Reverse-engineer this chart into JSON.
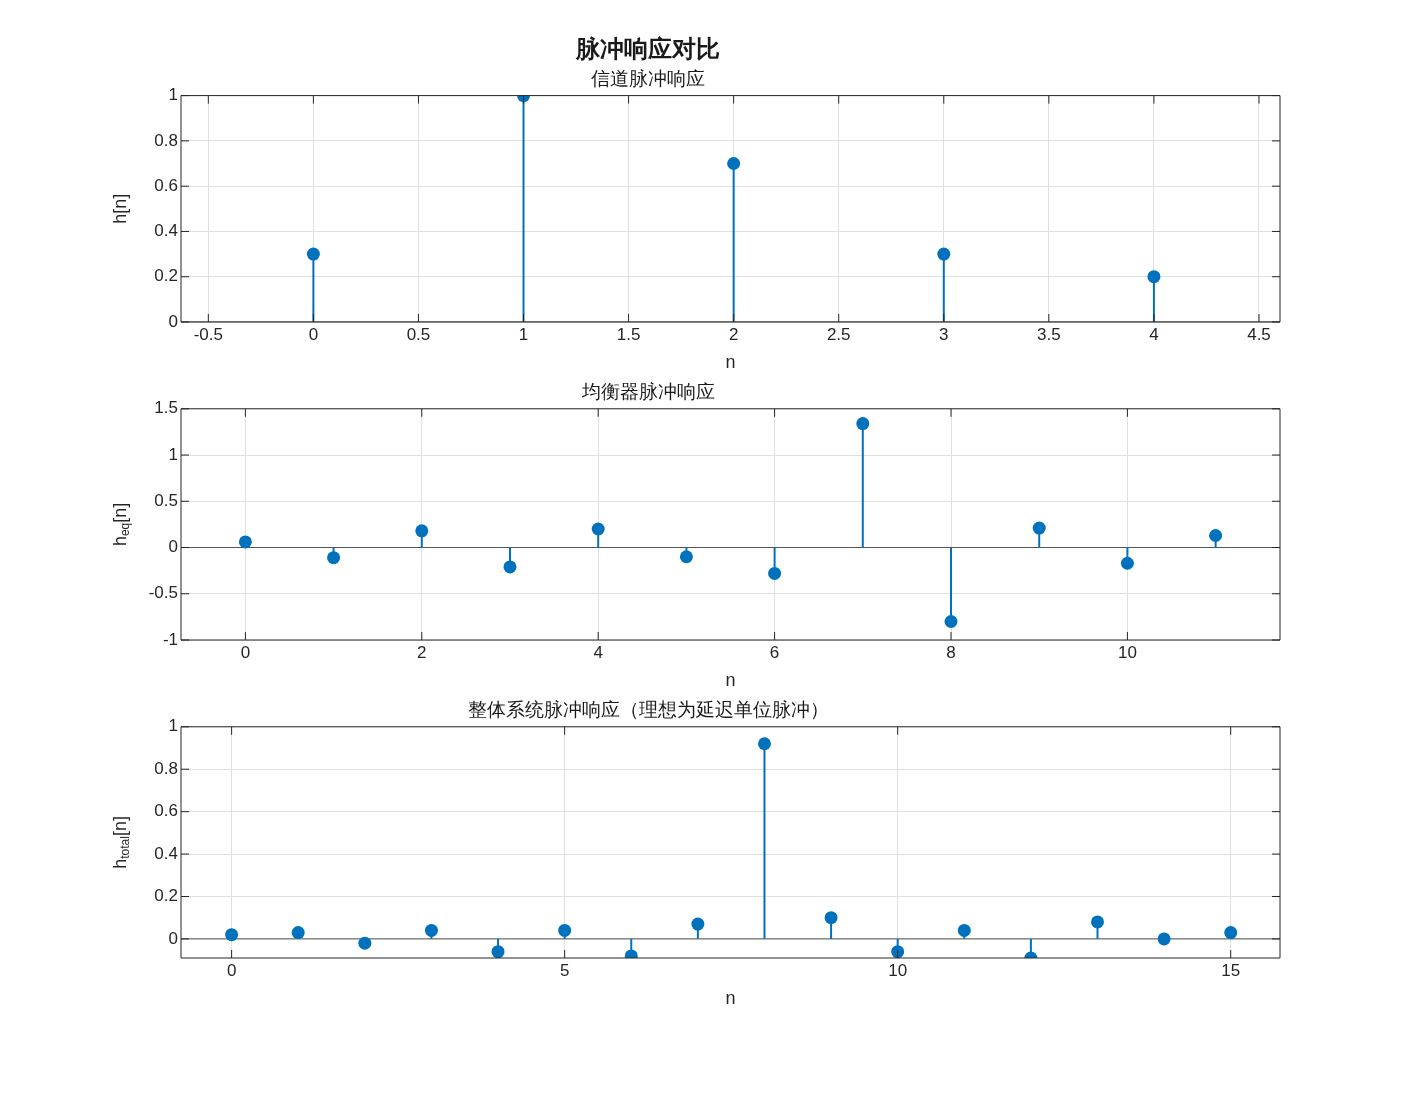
{
  "chart_data": [
    {
      "type": "lollipop",
      "title": "脉冲响应对比",
      "subtitle": "信道脉冲响应",
      "xlabel": "n",
      "ylabel": "h[n]",
      "x": [
        0,
        1,
        2,
        3,
        4
      ],
      "series": [
        {
          "color": "#0072bd",
          "values": [
            0.3,
            1,
            0.7,
            0.3,
            0.2
          ]
        }
      ],
      "xlim": [
        -0.63,
        4.6
      ],
      "xticks": [
        -0.5,
        0,
        0.5,
        1,
        1.5,
        2,
        2.5,
        3,
        3.5,
        4,
        4.5
      ],
      "ylim": [
        0,
        1
      ],
      "yticks": [
        0,
        0.2,
        0.4,
        0.6,
        0.8,
        1
      ],
      "grid": true,
      "marker": "circle"
    },
    {
      "type": "lollipop",
      "title": "均衡器脉冲响应",
      "xlabel": "n",
      "ylabel": "h$_{eq}$[n]",
      "x": [
        0,
        1,
        2,
        3,
        4,
        5,
        6,
        7,
        8,
        9,
        10,
        11
      ],
      "series": [
        {
          "color": "#0072bd",
          "values": [
            0.06,
            -0.11,
            0.18,
            -0.21,
            0.2,
            -0.1,
            -0.28,
            1.34,
            -0.8,
            0.21,
            -0.17,
            0.13
          ]
        }
      ],
      "xlim": [
        -0.73,
        11.73
      ],
      "xticks": [
        0,
        2,
        4,
        6,
        8,
        10
      ],
      "ylim": [
        -1,
        1.5
      ],
      "yticks": [
        -1,
        -0.5,
        0,
        0.5,
        1,
        1.5
      ],
      "grid": true,
      "marker": "circle"
    },
    {
      "type": "lollipop",
      "title": "整体系统脉冲响应（理想为延迟单位脉冲）",
      "xlabel": "n",
      "ylabel": "h$_{total}$[n]",
      "x": [
        0,
        1,
        2,
        3,
        4,
        5,
        6,
        7,
        8,
        9,
        10,
        11,
        12,
        13,
        14,
        15
      ],
      "series": [
        {
          "color": "#0072bd",
          "values": [
            0.02,
            0.03,
            -0.02,
            0.04,
            -0.06,
            0.04,
            -0.08,
            0.07,
            0.92,
            0.1,
            -0.06,
            0.04,
            -0.09,
            0.08,
            0,
            0.03
          ]
        }
      ],
      "xlim": [
        -0.76,
        15.74
      ],
      "xticks": [
        0,
        5,
        10,
        15
      ],
      "ylim": [
        -0.09,
        1
      ],
      "yticks": [
        0,
        0.2,
        0.4,
        0.6,
        0.8,
        1
      ],
      "grid": true,
      "marker": "circle"
    }
  ]
}
